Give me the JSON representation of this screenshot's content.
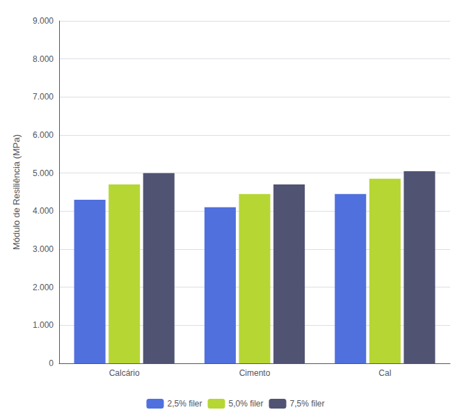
{
  "chart_data": {
    "type": "bar",
    "categories": [
      "Calcário",
      "Cimento",
      "Cal"
    ],
    "series": [
      {
        "name": "2,5% filer",
        "values": [
          4300,
          4100,
          4450
        ]
      },
      {
        "name": "5,0% filer",
        "values": [
          4700,
          4450,
          4850
        ]
      },
      {
        "name": "7,5% filer",
        "values": [
          5000,
          4700,
          5050
        ]
      }
    ],
    "ylabel": "Módulo de Resiliência (MPa)",
    "ylim": [
      0,
      9000
    ],
    "yticks": [
      0,
      {
        "value": 1000,
        "label": "1.000"
      },
      {
        "value": 2000,
        "label": "2.000"
      },
      {
        "value": 3000,
        "label": "3.000"
      },
      {
        "value": 4000,
        "label": "4.000"
      },
      {
        "value": 5000,
        "label": "5.000"
      },
      {
        "value": 6000,
        "label": "6.000"
      },
      {
        "value": 7000,
        "label": "7.000"
      },
      {
        "value": 8000,
        "label": "8.000"
      },
      {
        "value": 9000,
        "label": "9.000"
      }
    ],
    "grid": true,
    "legend": "bottom"
  }
}
